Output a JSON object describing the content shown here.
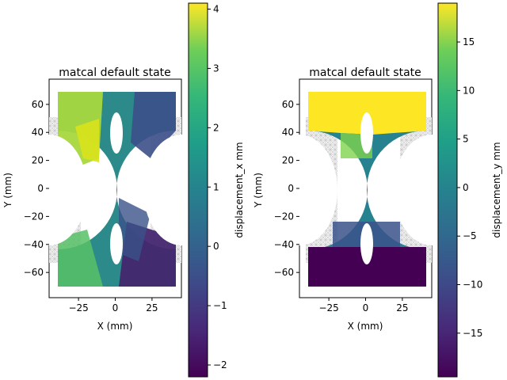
{
  "chart_data": [
    {
      "type": "heatmap",
      "title": "matcal default state",
      "xlabel": "X (mm)",
      "ylabel": "Y (mm)",
      "xlim": [
        -45,
        45
      ],
      "ylim": [
        -78,
        78
      ],
      "xticks": [
        -25,
        0,
        25
      ],
      "yticks": [
        -60,
        -40,
        -20,
        0,
        20,
        40,
        60
      ],
      "colorbar": {
        "label": "displacement_x mm",
        "range": [
          -2.2,
          4.1
        ],
        "ticks": [
          -2,
          -1,
          0,
          1,
          2,
          3,
          4
        ],
        "colormap": "viridis"
      },
      "field": "displacement_x"
    },
    {
      "type": "heatmap",
      "title": "matcal default state",
      "xlabel": "X (mm)",
      "ylabel": "Y (mm)",
      "xlim": [
        -45,
        45
      ],
      "ylim": [
        -78,
        78
      ],
      "xticks": [
        -25,
        0,
        25
      ],
      "yticks": [
        -60,
        -40,
        -20,
        0,
        20,
        40,
        60
      ],
      "colorbar": {
        "label": "displacement_y mm",
        "range": [
          -19.5,
          19
        ],
        "ticks": [
          -15,
          -10,
          -5,
          0,
          5,
          10,
          15
        ],
        "colormap": "viridis"
      },
      "field": "displacement_y"
    }
  ]
}
